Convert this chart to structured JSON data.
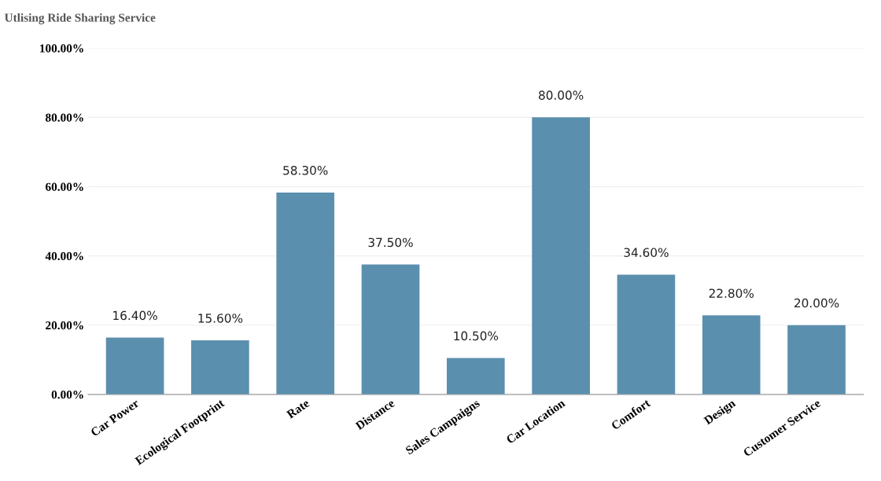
{
  "chart_data": {
    "type": "bar",
    "title": "Utlising Ride Sharing Service",
    "categories": [
      "Car Power",
      "Ecological Footprint",
      "Rate",
      "Distance",
      "Sales Campaigns",
      "Car Location",
      "Comfort",
      "Design",
      "Customer Service"
    ],
    "values": [
      16.4,
      15.6,
      58.3,
      37.5,
      10.5,
      80.0,
      34.6,
      22.8,
      20.0
    ],
    "value_labels": [
      "16.40%",
      "15.60%",
      "58.30%",
      "37.50%",
      "10.50%",
      "80.00%",
      "34.60%",
      "22.80%",
      "20.00%"
    ],
    "color": "#5b8fae",
    "ylim": [
      0,
      100
    ],
    "yticks": [
      {
        "value": 0,
        "label": "0.00%"
      },
      {
        "value": 20,
        "label": "20.00%"
      },
      {
        "value": 40,
        "label": "40.00%"
      },
      {
        "value": 60,
        "label": "60.00%"
      },
      {
        "value": 80,
        "label": "80.00%"
      },
      {
        "value": 100,
        "label": "100.00%"
      }
    ],
    "grid": "y"
  }
}
